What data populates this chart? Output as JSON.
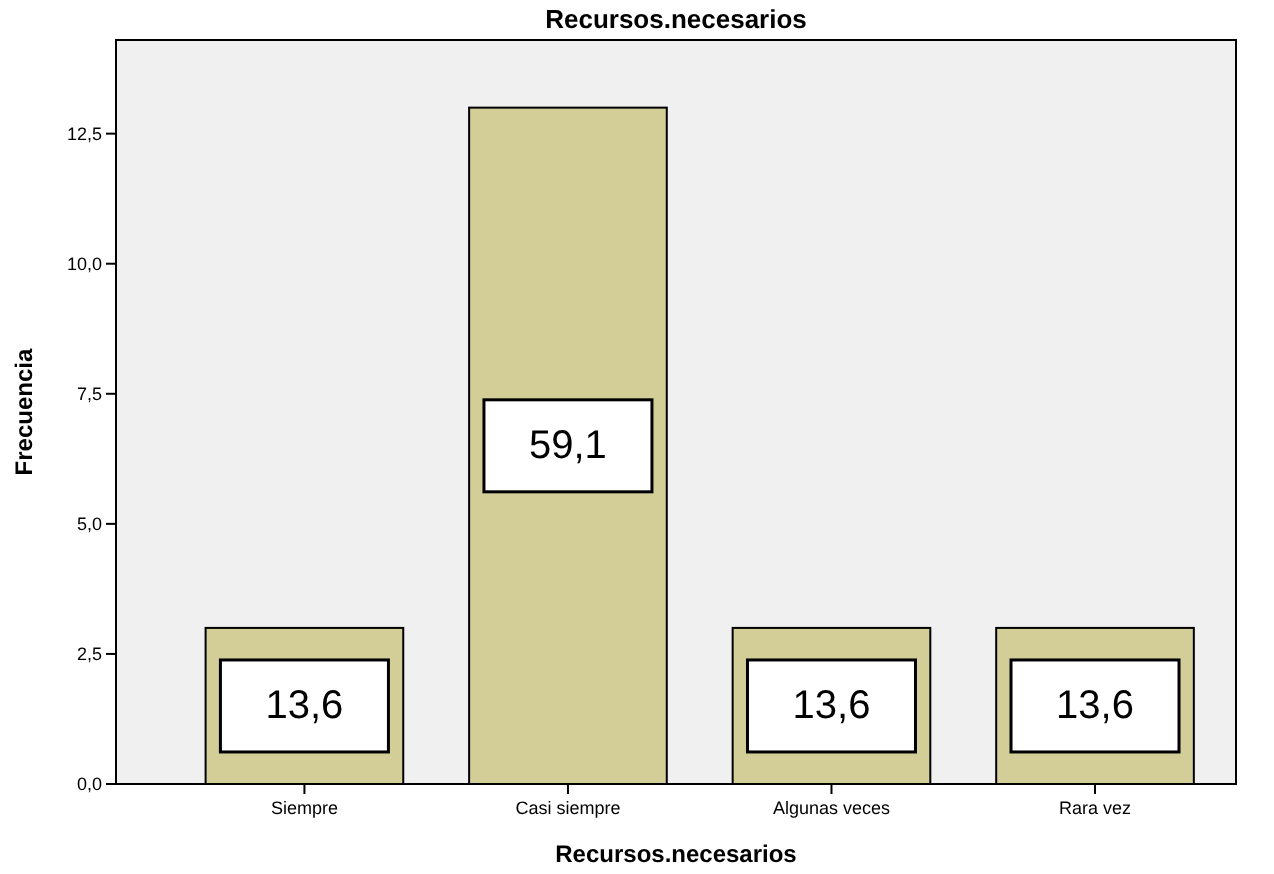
{
  "chart_data": {
    "type": "bar",
    "title": "Recursos.necesarios",
    "xlabel": "Recursos.necesarios",
    "ylabel": "Frecuencia",
    "categories": [
      "Siempre",
      "Casi siempre",
      "Algunas veces",
      "Rara vez"
    ],
    "values": [
      3,
      13,
      3,
      3
    ],
    "color": "#d3ce98",
    "annotations": [
      "13,6",
      "59,1",
      "13,6",
      "13,6"
    ],
    "ylim": [
      0,
      14.3
    ],
    "yticks": [
      {
        "value": 0,
        "label": "0,0"
      },
      {
        "value": 2.5,
        "label": "2,5"
      },
      {
        "value": 5,
        "label": "5,0"
      },
      {
        "value": 7.5,
        "label": "7,5"
      },
      {
        "value": 10,
        "label": "10,0"
      },
      {
        "value": 12.5,
        "label": "12,5"
      }
    ],
    "grid": false
  }
}
